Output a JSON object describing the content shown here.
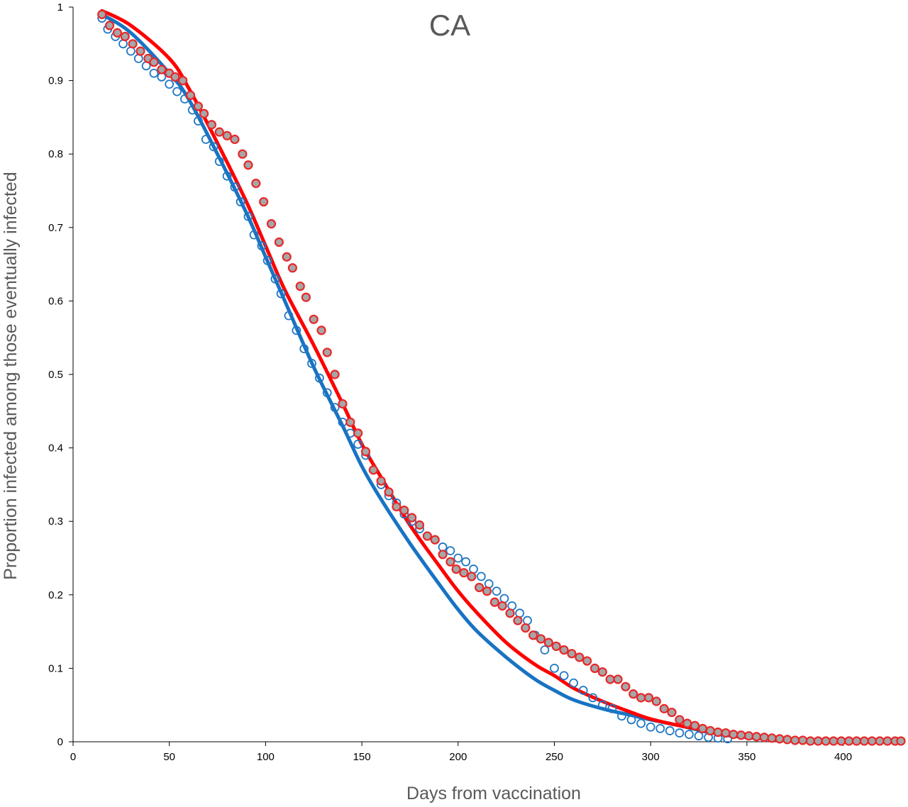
{
  "chart_data": {
    "type": "scatter",
    "title": "CA",
    "xlabel": "Days from vaccination",
    "ylabel": "Proportion infected among those eventually infected",
    "xlim": [
      0,
      430
    ],
    "ylim": [
      0,
      1
    ],
    "xticks": [
      0,
      50,
      100,
      150,
      200,
      250,
      300,
      350,
      400
    ],
    "yticks": [
      0,
      0.1,
      0.2,
      0.3,
      0.4,
      0.5,
      0.6,
      0.7,
      0.8,
      0.9,
      1
    ],
    "grid": false,
    "legend": "none",
    "series": [
      {
        "kind": "observed",
        "marker": "hollow-circle",
        "color": "#1f77c4",
        "points": [
          [
            15,
            0.985
          ],
          [
            18,
            0.97
          ],
          [
            22,
            0.96
          ],
          [
            26,
            0.95
          ],
          [
            30,
            0.94
          ],
          [
            34,
            0.93
          ],
          [
            38,
            0.92
          ],
          [
            42,
            0.91
          ],
          [
            46,
            0.905
          ],
          [
            50,
            0.895
          ],
          [
            54,
            0.885
          ],
          [
            58,
            0.875
          ],
          [
            62,
            0.86
          ],
          [
            65,
            0.845
          ],
          [
            69,
            0.82
          ],
          [
            73,
            0.81
          ],
          [
            76,
            0.79
          ],
          [
            80,
            0.77
          ],
          [
            84,
            0.755
          ],
          [
            87,
            0.735
          ],
          [
            91,
            0.715
          ],
          [
            94,
            0.69
          ],
          [
            98,
            0.675
          ],
          [
            101,
            0.655
          ],
          [
            105,
            0.63
          ],
          [
            108,
            0.61
          ],
          [
            112,
            0.58
          ],
          [
            116,
            0.56
          ],
          [
            120,
            0.535
          ],
          [
            124,
            0.515
          ],
          [
            128,
            0.495
          ],
          [
            132,
            0.475
          ],
          [
            136,
            0.455
          ],
          [
            140,
            0.435
          ],
          [
            144,
            0.42
          ],
          [
            148,
            0.405
          ],
          [
            152,
            0.39
          ],
          [
            156,
            0.37
          ],
          [
            160,
            0.35
          ],
          [
            164,
            0.335
          ],
          [
            168,
            0.325
          ],
          [
            172,
            0.31
          ],
          [
            176,
            0.3
          ],
          [
            180,
            0.29
          ],
          [
            184,
            0.28
          ],
          [
            188,
            0.275
          ],
          [
            192,
            0.265
          ],
          [
            196,
            0.26
          ],
          [
            200,
            0.25
          ],
          [
            204,
            0.245
          ],
          [
            208,
            0.235
          ],
          [
            212,
            0.225
          ],
          [
            216,
            0.215
          ],
          [
            220,
            0.205
          ],
          [
            224,
            0.195
          ],
          [
            228,
            0.185
          ],
          [
            232,
            0.175
          ],
          [
            236,
            0.165
          ],
          [
            240,
            0.145
          ],
          [
            245,
            0.125
          ],
          [
            250,
            0.1
          ],
          [
            255,
            0.09
          ],
          [
            260,
            0.08
          ],
          [
            265,
            0.07
          ],
          [
            270,
            0.06
          ],
          [
            275,
            0.05
          ],
          [
            280,
            0.045
          ],
          [
            285,
            0.035
          ],
          [
            290,
            0.03
          ],
          [
            295,
            0.025
          ],
          [
            300,
            0.02
          ],
          [
            305,
            0.018
          ],
          [
            310,
            0.015
          ],
          [
            315,
            0.012
          ],
          [
            320,
            0.01
          ],
          [
            325,
            0.008
          ],
          [
            330,
            0.006
          ],
          [
            335,
            0.005
          ],
          [
            340,
            0.004
          ]
        ]
      },
      {
        "kind": "observed",
        "marker": "filled-circle",
        "color": "#e8282a",
        "fill": "#a6a6a6",
        "points": [
          [
            15,
            0.99
          ],
          [
            19,
            0.975
          ],
          [
            23,
            0.965
          ],
          [
            27,
            0.96
          ],
          [
            31,
            0.95
          ],
          [
            35,
            0.94
          ],
          [
            39,
            0.93
          ],
          [
            42,
            0.925
          ],
          [
            46,
            0.915
          ],
          [
            50,
            0.91
          ],
          [
            53,
            0.905
          ],
          [
            57,
            0.9
          ],
          [
            61,
            0.88
          ],
          [
            65,
            0.865
          ],
          [
            68,
            0.855
          ],
          [
            72,
            0.84
          ],
          [
            76,
            0.83
          ],
          [
            80,
            0.825
          ],
          [
            84,
            0.82
          ],
          [
            88,
            0.8
          ],
          [
            91,
            0.785
          ],
          [
            95,
            0.76
          ],
          [
            99,
            0.735
          ],
          [
            103,
            0.705
          ],
          [
            107,
            0.68
          ],
          [
            111,
            0.66
          ],
          [
            114,
            0.645
          ],
          [
            118,
            0.62
          ],
          [
            121,
            0.605
          ],
          [
            125,
            0.575
          ],
          [
            129,
            0.56
          ],
          [
            132,
            0.53
          ],
          [
            136,
            0.5
          ],
          [
            140,
            0.46
          ],
          [
            144,
            0.435
          ],
          [
            148,
            0.42
          ],
          [
            152,
            0.395
          ],
          [
            156,
            0.37
          ],
          [
            160,
            0.355
          ],
          [
            164,
            0.34
          ],
          [
            168,
            0.32
          ],
          [
            172,
            0.315
          ],
          [
            176,
            0.305
          ],
          [
            180,
            0.295
          ],
          [
            184,
            0.28
          ],
          [
            188,
            0.275
          ],
          [
            192,
            0.255
          ],
          [
            196,
            0.245
          ],
          [
            199,
            0.235
          ],
          [
            203,
            0.23
          ],
          [
            207,
            0.225
          ],
          [
            211,
            0.21
          ],
          [
            215,
            0.205
          ],
          [
            219,
            0.19
          ],
          [
            223,
            0.185
          ],
          [
            227,
            0.175
          ],
          [
            231,
            0.165
          ],
          [
            235,
            0.155
          ],
          [
            239,
            0.145
          ],
          [
            243,
            0.14
          ],
          [
            247,
            0.135
          ],
          [
            251,
            0.13
          ],
          [
            255,
            0.125
          ],
          [
            259,
            0.12
          ],
          [
            263,
            0.115
          ],
          [
            267,
            0.11
          ],
          [
            271,
            0.1
          ],
          [
            275,
            0.095
          ],
          [
            279,
            0.085
          ],
          [
            283,
            0.085
          ],
          [
            287,
            0.075
          ],
          [
            291,
            0.065
          ],
          [
            295,
            0.06
          ],
          [
            299,
            0.06
          ],
          [
            303,
            0.055
          ],
          [
            307,
            0.045
          ],
          [
            311,
            0.04
          ],
          [
            315,
            0.03
          ],
          [
            319,
            0.025
          ],
          [
            323,
            0.022
          ],
          [
            327,
            0.018
          ],
          [
            331,
            0.015
          ],
          [
            335,
            0.013
          ],
          [
            339,
            0.012
          ],
          [
            343,
            0.01
          ],
          [
            347,
            0.009
          ],
          [
            351,
            0.008
          ],
          [
            355,
            0.007
          ],
          [
            359,
            0.006
          ],
          [
            363,
            0.005
          ],
          [
            367,
            0.004
          ],
          [
            371,
            0.003
          ],
          [
            375,
            0.002
          ],
          [
            379,
            0.002
          ],
          [
            383,
            0.001
          ],
          [
            387,
            0.001
          ],
          [
            391,
            0.001
          ],
          [
            395,
            0.001
          ],
          [
            399,
            0.001
          ],
          [
            403,
            0.001
          ],
          [
            407,
            0.001
          ],
          [
            411,
            0.001
          ],
          [
            415,
            0.001
          ],
          [
            419,
            0.001
          ],
          [
            423,
            0.001
          ],
          [
            427,
            0.001
          ],
          [
            430,
            0.001
          ]
        ]
      },
      {
        "kind": "fit",
        "color": "#1873c3",
        "points": [
          [
            15,
            0.99
          ],
          [
            30,
            0.965
          ],
          [
            50,
            0.91
          ],
          [
            60,
            0.875
          ],
          [
            75,
            0.8
          ],
          [
            90,
            0.72
          ],
          [
            100,
            0.66
          ],
          [
            110,
            0.6
          ],
          [
            125,
            0.51
          ],
          [
            140,
            0.43
          ],
          [
            150,
            0.375
          ],
          [
            160,
            0.33
          ],
          [
            175,
            0.27
          ],
          [
            190,
            0.215
          ],
          [
            200,
            0.18
          ],
          [
            210,
            0.15
          ],
          [
            225,
            0.115
          ],
          [
            240,
            0.085
          ],
          [
            250,
            0.07
          ],
          [
            260,
            0.057
          ],
          [
            275,
            0.045
          ],
          [
            290,
            0.036
          ],
          [
            300,
            0.03
          ],
          [
            315,
            0.022
          ],
          [
            330,
            0.013
          ],
          [
            345,
            0.007
          ],
          [
            360,
            0.004
          ],
          [
            375,
            0.002
          ],
          [
            390,
            0.001
          ]
        ]
      },
      {
        "kind": "fit",
        "color": "#ff0000",
        "points": [
          [
            15,
            0.995
          ],
          [
            30,
            0.975
          ],
          [
            50,
            0.93
          ],
          [
            60,
            0.89
          ],
          [
            75,
            0.815
          ],
          [
            90,
            0.735
          ],
          [
            100,
            0.675
          ],
          [
            110,
            0.615
          ],
          [
            125,
            0.54
          ],
          [
            140,
            0.46
          ],
          [
            150,
            0.405
          ],
          [
            160,
            0.36
          ],
          [
            175,
            0.295
          ],
          [
            190,
            0.24
          ],
          [
            200,
            0.205
          ],
          [
            210,
            0.175
          ],
          [
            225,
            0.135
          ],
          [
            240,
            0.105
          ],
          [
            250,
            0.09
          ],
          [
            260,
            0.073
          ],
          [
            275,
            0.055
          ],
          [
            290,
            0.04
          ],
          [
            300,
            0.031
          ],
          [
            315,
            0.022
          ],
          [
            330,
            0.015
          ],
          [
            345,
            0.009
          ],
          [
            360,
            0.005
          ],
          [
            375,
            0.003
          ],
          [
            390,
            0.002
          ],
          [
            410,
            0.001
          ],
          [
            430,
            0.001
          ]
        ]
      }
    ]
  }
}
